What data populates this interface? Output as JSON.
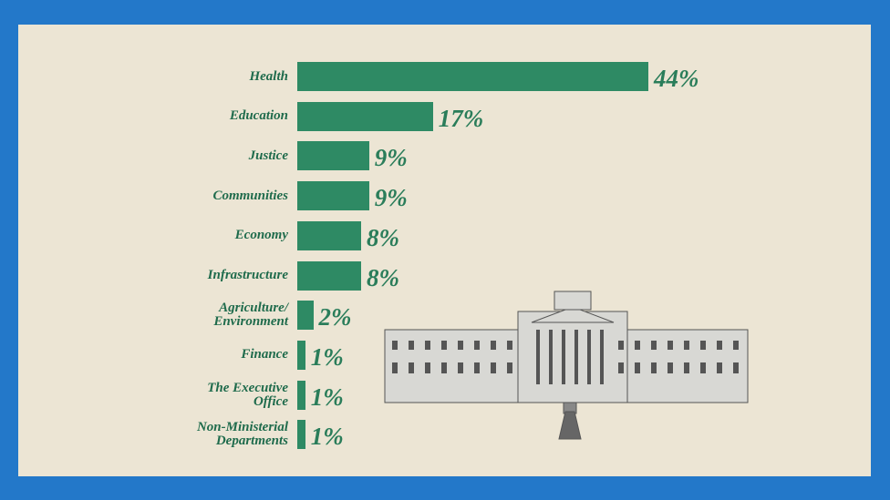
{
  "chart_data": {
    "type": "bar",
    "orientation": "horizontal",
    "categories": [
      "Health",
      "Education",
      "Justice",
      "Communities",
      "Economy",
      "Infrastructure",
      "Agriculture/\nEnvironment",
      "Finance",
      "The Executive\nOffice",
      "Non-Ministerial\nDepartments"
    ],
    "values": [
      44,
      17,
      9,
      9,
      8,
      8,
      2,
      1,
      1,
      1
    ],
    "value_labels": [
      "44%",
      "17%",
      "9%",
      "9%",
      "8%",
      "8%",
      "2%",
      "1%",
      "1%",
      "1%"
    ],
    "color": "#2e8a64"
  }
}
